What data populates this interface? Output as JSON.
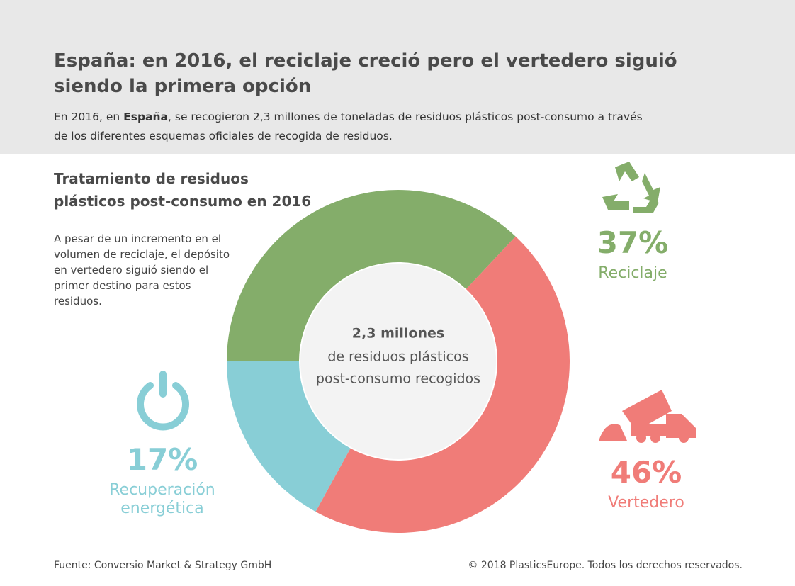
{
  "header": {
    "title": "España: en 2016, el reciclaje creció pero el vertedero siguió siendo la primera opción",
    "subtitle": {
      "before": "En 2016, en ",
      "bold": "España",
      "after": ", se recogieron 2,3 millones de toneladas de residuos plásticos post-consumo a través de los diferentes esquemas oficiales de recogida de residuos."
    }
  },
  "chart_data": {
    "type": "donut",
    "title": "Tratamiento de residuos plásticos post-consumo en 2016",
    "note": "A pesar de un incremento en el volumen de reciclaje, el depósito en vertedero siguió siendo el primer destino para estos residuos.",
    "center_text": [
      "2,3 millones",
      "de residuos plásticos",
      "post-consumo recogidos"
    ],
    "categories": [
      "Reciclaje",
      "Vertedero",
      "Recuperación energética"
    ],
    "values": [
      37,
      46,
      17
    ],
    "value_labels": [
      "37%",
      "46%",
      "17%"
    ],
    "colors": [
      "#84ad6a",
      "#f07c78",
      "#88ced6"
    ]
  },
  "footer": {
    "source": "Fuente: Conversio Market & Strategy GmbH",
    "copyright": "© 2018 PlasticsEurope. Todos los derechos reservados."
  }
}
